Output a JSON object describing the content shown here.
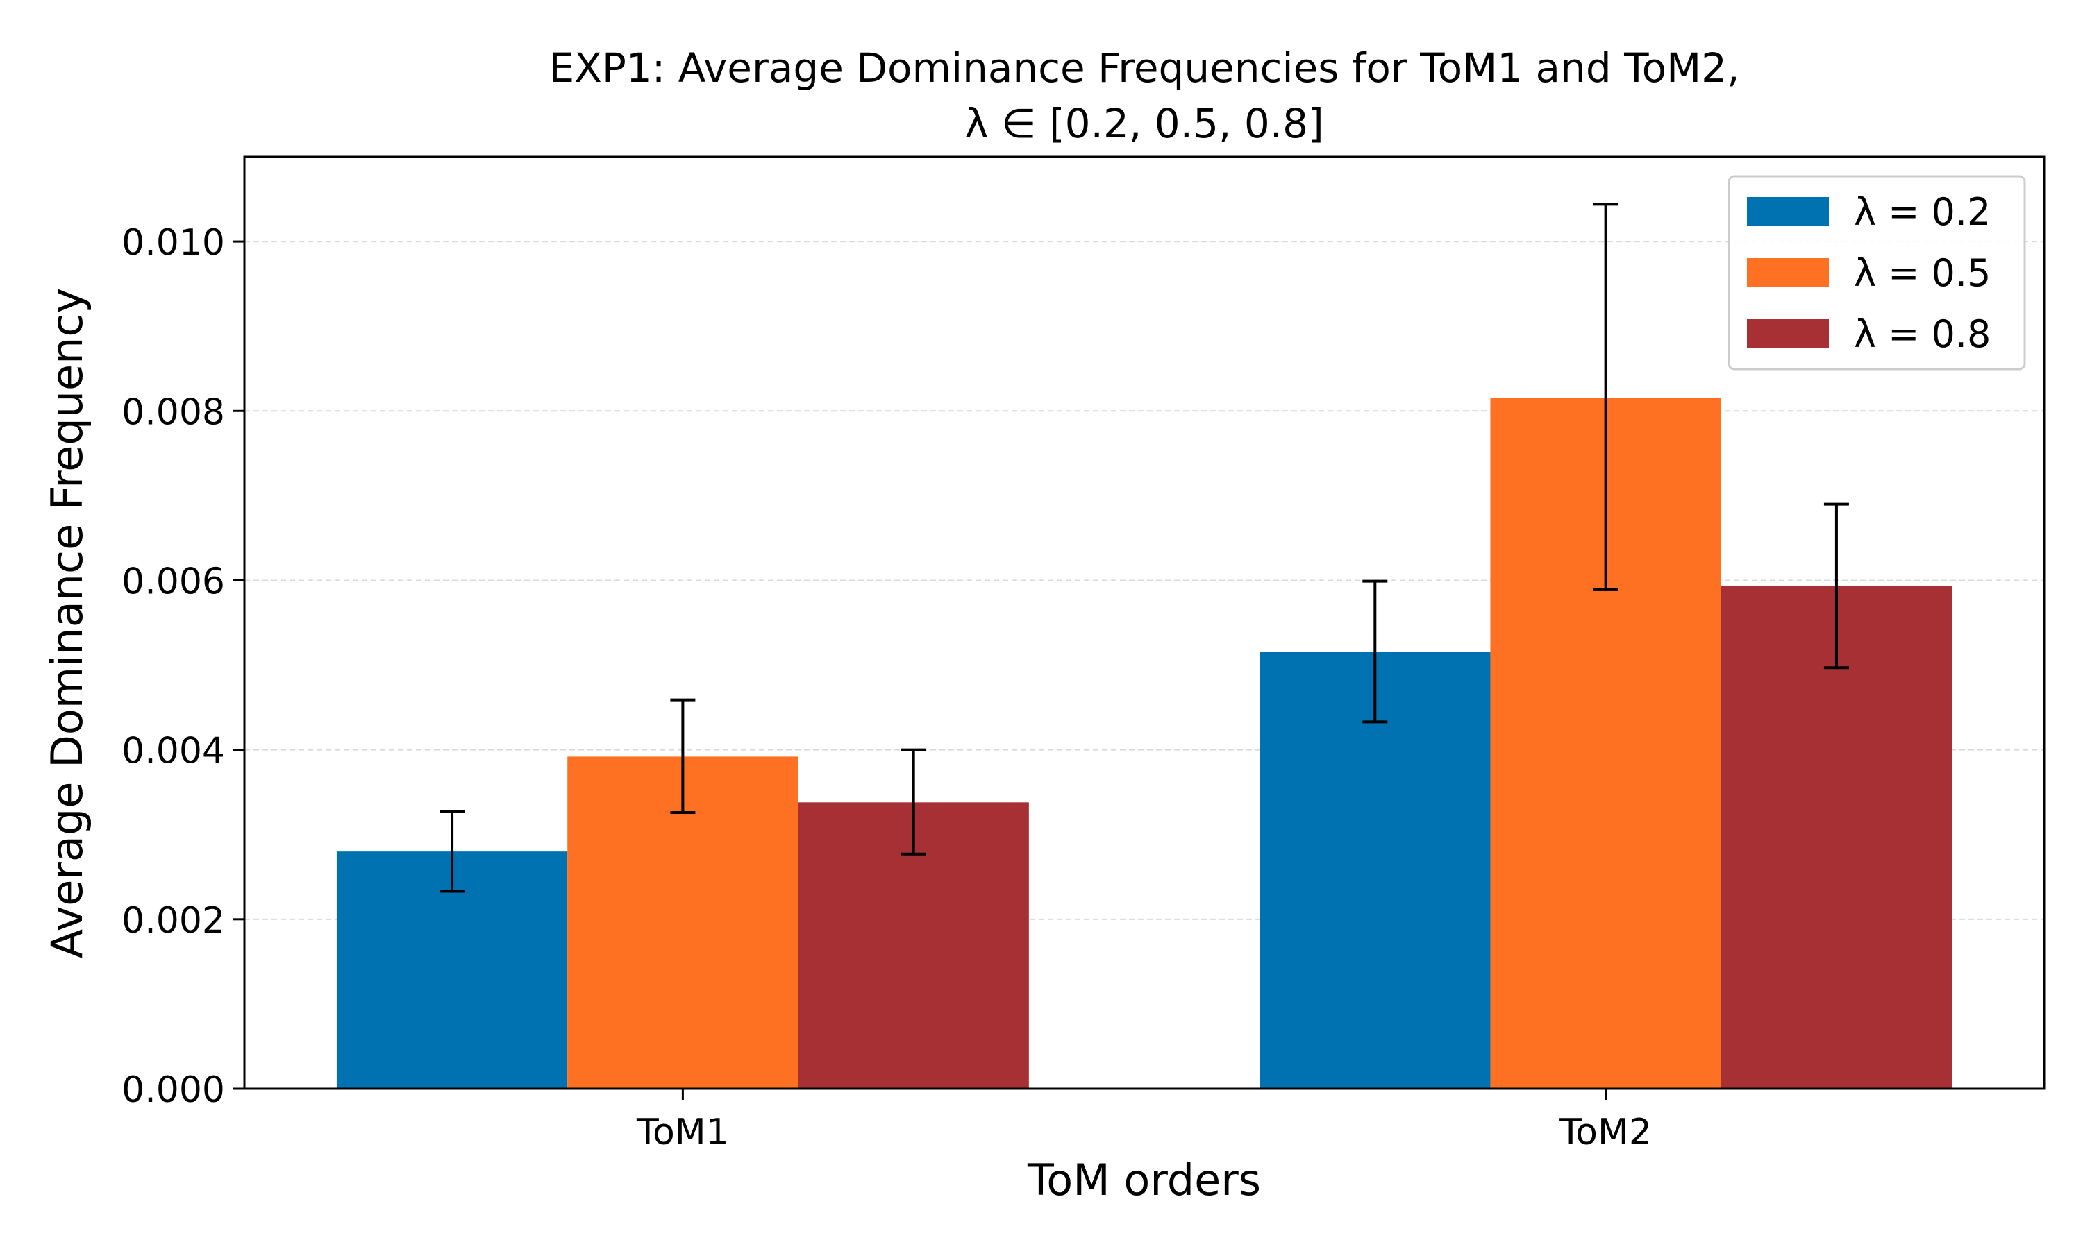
{
  "chart_data": {
    "type": "bar",
    "title_line1": "EXP1: Average Dominance Frequencies for ToM1 and ToM2,",
    "title_line2": "λ ∈ [0.2, 0.5, 0.8]",
    "xlabel": "ToM orders",
    "ylabel": "Average Dominance Frequency",
    "categories": [
      "ToM1",
      "ToM2"
    ],
    "ylim": [
      0,
      0.011
    ],
    "yticks": [
      0,
      0.002,
      0.004,
      0.006,
      0.008,
      0.01
    ],
    "ytick_labels": [
      "0.000",
      "0.002",
      "0.004",
      "0.006",
      "0.008",
      "0.010"
    ],
    "grid": "horizontal dashed",
    "legend_position": "top-right",
    "series": [
      {
        "name": "λ = 0.2",
        "color": "#0072b2",
        "values": [
          0.0028,
          0.00516
        ],
        "error_low": [
          0.00233,
          0.00433
        ],
        "error_high": [
          0.00327,
          0.00599
        ]
      },
      {
        "name": "λ = 0.5",
        "color": "#ff7122",
        "values": [
          0.00392,
          0.00815
        ],
        "error_low": [
          0.00326,
          0.00589
        ],
        "error_high": [
          0.00459,
          0.01044
        ]
      },
      {
        "name": "λ = 0.8",
        "color": "#a63034",
        "values": [
          0.00338,
          0.00593
        ],
        "error_low": [
          0.00277,
          0.00497
        ],
        "error_high": [
          0.004,
          0.0069
        ]
      }
    ]
  }
}
